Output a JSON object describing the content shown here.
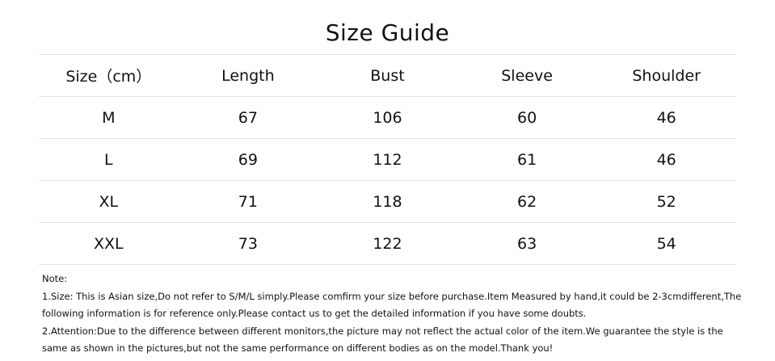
{
  "title": "Size Guide",
  "table": {
    "headers": [
      "Size（cm）",
      "Length",
      "Bust",
      "Sleeve",
      "Shoulder"
    ],
    "rows": [
      [
        "M",
        "67",
        "106",
        "60",
        "46"
      ],
      [
        "L",
        "69",
        "112",
        "61",
        "46"
      ],
      [
        "XL",
        "71",
        "118",
        "62",
        "52"
      ],
      [
        "XXL",
        "73",
        "122",
        "63",
        "54"
      ]
    ]
  },
  "notes": [
    "Note:",
    "1.Size: This is Asian size,Do not refer to S/M/L simply.Please comfirm your size before purchase.Item Measured by hand,it could be 2-3cmdifferent,The",
    "following information is for reference only.Please contact us to get the detailed information if you have some doubts.",
    "2.Attention:Due to the difference between different monitors,the picture may not reflect the actual color of the item.We guarantee the style is the",
    "same as shown in the pictures,but not the same performance on different bodies as on the model.Thank you!"
  ]
}
